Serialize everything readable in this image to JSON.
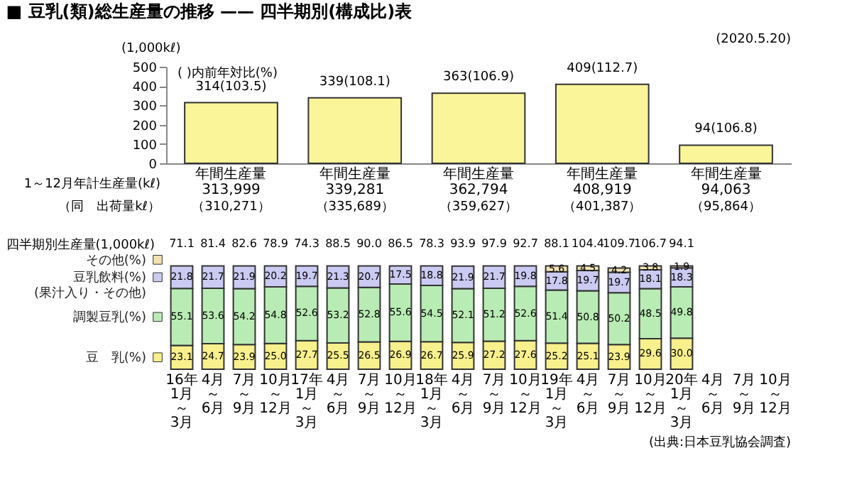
{
  "chart_data": [
    {
      "type": "bar",
      "title": "■ 豆乳(類)総生産量の推移 —— 四半期別(構成比)表",
      "ylabel": "(1,000kℓ)",
      "categories": [
        "年間生産量 313,999",
        "年間生産量 339,281",
        "年間生産量 362,794",
        "年間生産量 408,919",
        "年間生産量 94,063"
      ],
      "values": [
        314,
        339,
        363,
        409,
        94
      ],
      "value_labels": [
        "314(103.5)",
        "339(108.1)",
        "363(106.9)",
        "409(112.7)",
        "94(106.8)"
      ],
      "color": "#fbf59a",
      "ylim": [
        0,
        500
      ],
      "yticks": [
        0,
        100,
        200,
        300,
        400,
        500
      ],
      "grid": false,
      "legend": false,
      "annotations": [
        "( )内前年対比(%)",
        "1～12月年計生産量(kℓ)",
        "（同　出荷量kℓ）",
        "(2020.5.20)",
        "（310,271）",
        "（335,689）",
        "（359,627）",
        "（401,387）",
        "（95,864）"
      ]
    },
    {
      "type": "bar",
      "stacked": true,
      "legend": "left",
      "grid": false,
      "tick_labels": "x",
      "categories": [
        "16年1月～3月",
        "4月～6月",
        "7月～9月",
        "10月～12月",
        "17年1月～3月",
        "4月～6月",
        "7月～9月",
        "10月～12月",
        "18年1月～3月",
        "4月～6月",
        "7月～9月",
        "10月～12月",
        "19年1月～3月",
        "4月～6月",
        "7月～9月",
        "10月～12月",
        "20年1月～3月",
        "4月～6月",
        "7月～9月",
        "10月～12月"
      ],
      "series": [
        {
          "name": "豆　乳(%)",
          "color": "#f7f08c",
          "values": [
            23.1,
            24.7,
            23.9,
            25.0,
            27.7,
            25.5,
            26.5,
            26.9,
            26.7,
            25.9,
            27.2,
            27.6,
            25.2,
            25.1,
            23.9,
            29.6,
            30.0,
            null,
            null,
            null
          ],
          "value_labels": [
            "23.1",
            "24.7",
            "23.9",
            "25.0",
            "27.7",
            "25.5",
            "26.5",
            "26.9",
            "26.7",
            "25.9",
            "27.2",
            "27.6",
            "25.2",
            "25.1",
            "23.9",
            "29.6",
            "30.0",
            null,
            null,
            null
          ]
        },
        {
          "name": "調製豆乳(%)",
          "color": "#b9ecb4",
          "values": [
            55.1,
            53.6,
            54.2,
            54.8,
            52.6,
            53.2,
            52.8,
            55.6,
            54.5,
            52.1,
            51.2,
            52.6,
            51.4,
            50.8,
            50.2,
            48.5,
            49.8,
            null,
            null,
            null
          ],
          "value_labels": [
            "55.1",
            "53.6",
            "54.2",
            "54.8",
            "52.6",
            "53.2",
            "52.8",
            "55.6",
            "54.5",
            "52.1",
            "51.2",
            "52.6",
            "51.4",
            "50.8",
            "50.2",
            "48.5",
            "49.8",
            null,
            null,
            null
          ]
        },
        {
          "name": "豆乳飲料(%) (果汁入り・その他)",
          "color": "#cacaf2",
          "values": [
            21.8,
            21.7,
            21.9,
            20.2,
            19.7,
            21.3,
            20.7,
            17.5,
            18.8,
            21.9,
            21.7,
            19.8,
            17.8,
            19.7,
            19.7,
            18.1,
            18.3,
            null,
            null,
            null
          ],
          "value_labels": [
            "21.8",
            "21.7",
            "21.9",
            "20.2",
            "19.7",
            "21.3",
            "20.7",
            "17.5",
            "18.8",
            "21.9",
            "21.7",
            "19.8",
            "17.8",
            "19.7",
            "19.7",
            "18.1",
            "18.3",
            null,
            null,
            null
          ]
        },
        {
          "name": "その他(%)",
          "color": "#f2e2b0",
          "values": [
            null,
            null,
            null,
            null,
            null,
            null,
            null,
            null,
            null,
            null,
            null,
            null,
            5.6,
            4.5,
            4.2,
            3.8,
            1.9,
            null,
            null,
            null
          ],
          "value_labels": [
            null,
            null,
            null,
            null,
            null,
            null,
            null,
            null,
            null,
            null,
            null,
            null,
            "5.6",
            "4.5",
            "4.2",
            "3.8",
            "1.9",
            null,
            null,
            null
          ]
        }
      ],
      "annotations": [
        "四半期別生産量(1,000kℓ)",
        "71.1",
        "81.4",
        "82.6",
        "78.9",
        "74.3",
        "88.5",
        "90.0",
        "86.5",
        "78.3",
        "93.9",
        "97.9",
        "92.7",
        "88.1",
        "104.4",
        "109.7",
        "106.7",
        "94.1",
        "(出典:日本豆乳協会調査)"
      ]
    }
  ]
}
